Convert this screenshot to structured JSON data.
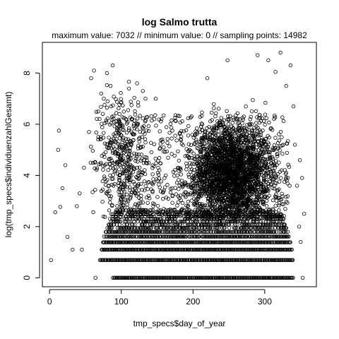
{
  "chart_data": {
    "type": "scatter",
    "title": "log Salmo trutta",
    "subtitle": "maximum value: 7032  //  minimum value: 0  // sampling points: 14982",
    "xlabel": "tmp_specs$day_of_year",
    "ylabel": "log(tmp_specs$individuenzahlGesamt)",
    "xlim": [
      -10,
      372
    ],
    "ylim": [
      -0.35,
      9.2
    ],
    "xticks": [
      0,
      100,
      200,
      300
    ],
    "yticks": [
      0,
      2,
      4,
      6,
      8
    ],
    "marker": "open-circle",
    "grid": false,
    "legend": "none",
    "outliers": [
      {
        "x": 2,
        "y": 0.69
      },
      {
        "x": 8,
        "y": 2.56
      },
      {
        "x": 12,
        "y": 5.0
      },
      {
        "x": 13,
        "y": 5.75
      },
      {
        "x": 15,
        "y": 2.77
      },
      {
        "x": 18,
        "y": 3.5
      },
      {
        "x": 22,
        "y": 4.4
      },
      {
        "x": 25,
        "y": 1.6
      },
      {
        "x": 32,
        "y": 1.1
      },
      {
        "x": 38,
        "y": 2.8
      },
      {
        "x": 42,
        "y": 3.3
      },
      {
        "x": 45,
        "y": 1.1
      },
      {
        "x": 48,
        "y": 4.3
      },
      {
        "x": 55,
        "y": 5.7
      },
      {
        "x": 58,
        "y": 7.8
      },
      {
        "x": 62,
        "y": 8.1
      },
      {
        "x": 64,
        "y": 0.0
      },
      {
        "x": 68,
        "y": 6.5
      },
      {
        "x": 72,
        "y": 7.2
      },
      {
        "x": 80,
        "y": 8.0
      },
      {
        "x": 85,
        "y": 7.5
      },
      {
        "x": 88,
        "y": 8.3
      },
      {
        "x": 122,
        "y": 7.6
      },
      {
        "x": 130,
        "y": 7.3
      },
      {
        "x": 148,
        "y": 7.0
      },
      {
        "x": 220,
        "y": 7.8
      },
      {
        "x": 248,
        "y": 8.5
      },
      {
        "x": 290,
        "y": 8.7
      },
      {
        "x": 305,
        "y": 8.5
      },
      {
        "x": 315,
        "y": 8.05
      },
      {
        "x": 322,
        "y": 8.8
      },
      {
        "x": 336,
        "y": 8.3
      },
      {
        "x": 330,
        "y": 7.5
      },
      {
        "x": 340,
        "y": 6.7
      },
      {
        "x": 342,
        "y": 5.2
      },
      {
        "x": 345,
        "y": 3.6
      },
      {
        "x": 348,
        "y": 2.0
      },
      {
        "x": 350,
        "y": 1.4
      },
      {
        "x": 353,
        "y": 0.0
      },
      {
        "x": 355,
        "y": 2.5
      },
      {
        "x": 352,
        "y": 3.9
      },
      {
        "x": 349,
        "y": 4.6
      }
    ]
  }
}
